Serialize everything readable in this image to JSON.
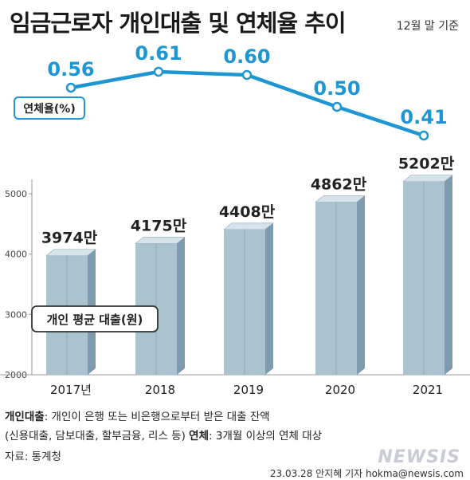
{
  "header": {
    "title": "임금근로자 개인대출 및 연체율 추이",
    "basis": "12월 말 기준"
  },
  "chart_data": {
    "type": "bar",
    "categories": [
      "2017년",
      "2018",
      "2019",
      "2020",
      "2021"
    ],
    "bar_series": {
      "name": "개인 평균 대출(원)",
      "values": [
        3974,
        4175,
        4408,
        4862,
        5202
      ],
      "labels": [
        "3974만",
        "4175만",
        "4408만",
        "4862만",
        "5202만"
      ]
    },
    "line_series": {
      "name": "연체율(%)",
      "values": [
        0.56,
        0.61,
        0.6,
        0.5,
        0.41
      ],
      "labels": [
        "0.56",
        "0.61",
        "0.60",
        "0.50",
        "0.41"
      ]
    },
    "y_ticks": [
      "2000",
      "3000",
      "4000",
      "5000"
    ],
    "ylim": [
      2000,
      5300
    ],
    "grid": false,
    "colors": {
      "bar_front": "#a9c3cf",
      "bar_side": "#7e9bb0",
      "bar_top": "#d6e3ea",
      "line": "#1e96d4",
      "line_label": "#1e96d4"
    }
  },
  "footer": {
    "note1_bold": "개인대출",
    "note1_text": ": 개인이 은행 또는 비은행으로부터 받은 대출 잔액",
    "note2_text": "(신용대출, 담보대출, 할부금융, 리스 등) ",
    "note2_bold": "연체",
    "note2_rest": ": 3개월 이상의 연체 대상",
    "source": "자료: 통계청",
    "logo": "NEWSIS",
    "credit": "23.03.28 안지혜 기자 hokma@newsis.com"
  }
}
